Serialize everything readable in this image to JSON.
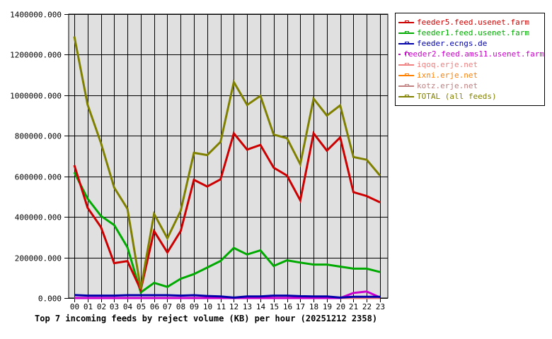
{
  "title": "Top 7 incoming feeds by reject volume (KB) per hour (20251212 2358)",
  "chart_data": {
    "type": "line",
    "title": "Top 7 incoming feeds by reject volume (KB) per hour (20251212 2358)",
    "xlabel": "",
    "ylabel": "",
    "ylim": [
      0,
      1400000
    ],
    "yticks": [
      "0.000",
      "200000.000",
      "400000.000",
      "600000.000",
      "800000.000",
      "1000000.000",
      "1200000.000",
      "1400000.000"
    ],
    "grid": true,
    "legend_position": "right",
    "categories": [
      "00",
      "01",
      "02",
      "03",
      "04",
      "05",
      "06",
      "07",
      "08",
      "09",
      "10",
      "11",
      "12",
      "13",
      "14",
      "15",
      "16",
      "17",
      "18",
      "19",
      "20",
      "21",
      "22",
      "23"
    ],
    "series": [
      {
        "name": "feeder5.feed.usenet.farm",
        "color": "#cc0000",
        "values": [
          655000,
          445000,
          350000,
          172000,
          182000,
          40000,
          330000,
          225000,
          330000,
          583000,
          550000,
          585000,
          812000,
          732000,
          755000,
          643000,
          604000,
          482000,
          812000,
          727000,
          792000,
          522000,
          503000,
          472000
        ]
      },
      {
        "name": "feeder1.feed.usenet.farm",
        "color": "#00aa00",
        "values": [
          620000,
          490000,
          405000,
          360000,
          250000,
          28000,
          75000,
          55000,
          95000,
          118000,
          150000,
          183000,
          247000,
          215000,
          235000,
          158000,
          186000,
          175000,
          165000,
          165000,
          155000,
          145000,
          145000,
          128000
        ]
      },
      {
        "name": "feeder.ecngs.de",
        "color": "#0000aa",
        "values": [
          15000,
          12000,
          12000,
          12000,
          14000,
          14000,
          14000,
          14000,
          12000,
          14000,
          10000,
          8000,
          2000,
          8000,
          8000,
          12000,
          12000,
          9000,
          8000,
          8000,
          2000,
          6000,
          6000,
          6000
        ]
      },
      {
        "name": "feeder2.feed.ams11.usenet.farm",
        "color": "#cc00cc",
        "values": [
          0,
          0,
          0,
          0,
          0,
          0,
          0,
          0,
          0,
          0,
          0,
          0,
          0,
          0,
          0,
          0,
          0,
          0,
          0,
          0,
          0,
          25000,
          32000,
          3000
        ]
      },
      {
        "name": "iqoq.erje.net",
        "color": "#f08080",
        "values": [
          0,
          0,
          0,
          0,
          0,
          0,
          0,
          0,
          0,
          0,
          0,
          0,
          0,
          0,
          0,
          0,
          0,
          0,
          0,
          0,
          0,
          0,
          0,
          0
        ]
      },
      {
        "name": "ixni.erje.net",
        "color": "#ff8000",
        "values": [
          0,
          0,
          0,
          0,
          0,
          0,
          0,
          0,
          0,
          0,
          0,
          0,
          0,
          0,
          0,
          0,
          0,
          0,
          0,
          0,
          0,
          0,
          0,
          0
        ]
      },
      {
        "name": "kotz.erje.net",
        "color": "#c08080",
        "values": [
          0,
          0,
          0,
          0,
          0,
          0,
          0,
          0,
          0,
          0,
          0,
          0,
          0,
          0,
          0,
          0,
          0,
          0,
          0,
          0,
          0,
          0,
          0,
          0
        ]
      },
      {
        "name": "TOTAL (all feeds)",
        "color": "#808000",
        "values": [
          1290000,
          953000,
          765000,
          545000,
          440000,
          45000,
          415000,
          295000,
          430000,
          716000,
          705000,
          770000,
          1065000,
          952000,
          997000,
          806000,
          788000,
          660000,
          983000,
          900000,
          950000,
          695000,
          682000,
          604000
        ]
      }
    ]
  },
  "legend": {
    "items": [
      {
        "label": "feeder5.feed.usenet.farm",
        "color": "#cc0000"
      },
      {
        "label": "feeder1.feed.usenet.farm",
        "color": "#00aa00"
      },
      {
        "label": "feeder.ecngs.de",
        "color": "#0000aa"
      },
      {
        "label": "feeder2.feed.ams11.usenet.farm",
        "color": "#cc00cc"
      },
      {
        "label": "iqoq.erje.net",
        "color": "#f08080"
      },
      {
        "label": "ixni.erje.net",
        "color": "#ff8000"
      },
      {
        "label": "kotz.erje.net",
        "color": "#c08080"
      },
      {
        "label": "TOTAL (all feeds)",
        "color": "#808000"
      }
    ]
  }
}
